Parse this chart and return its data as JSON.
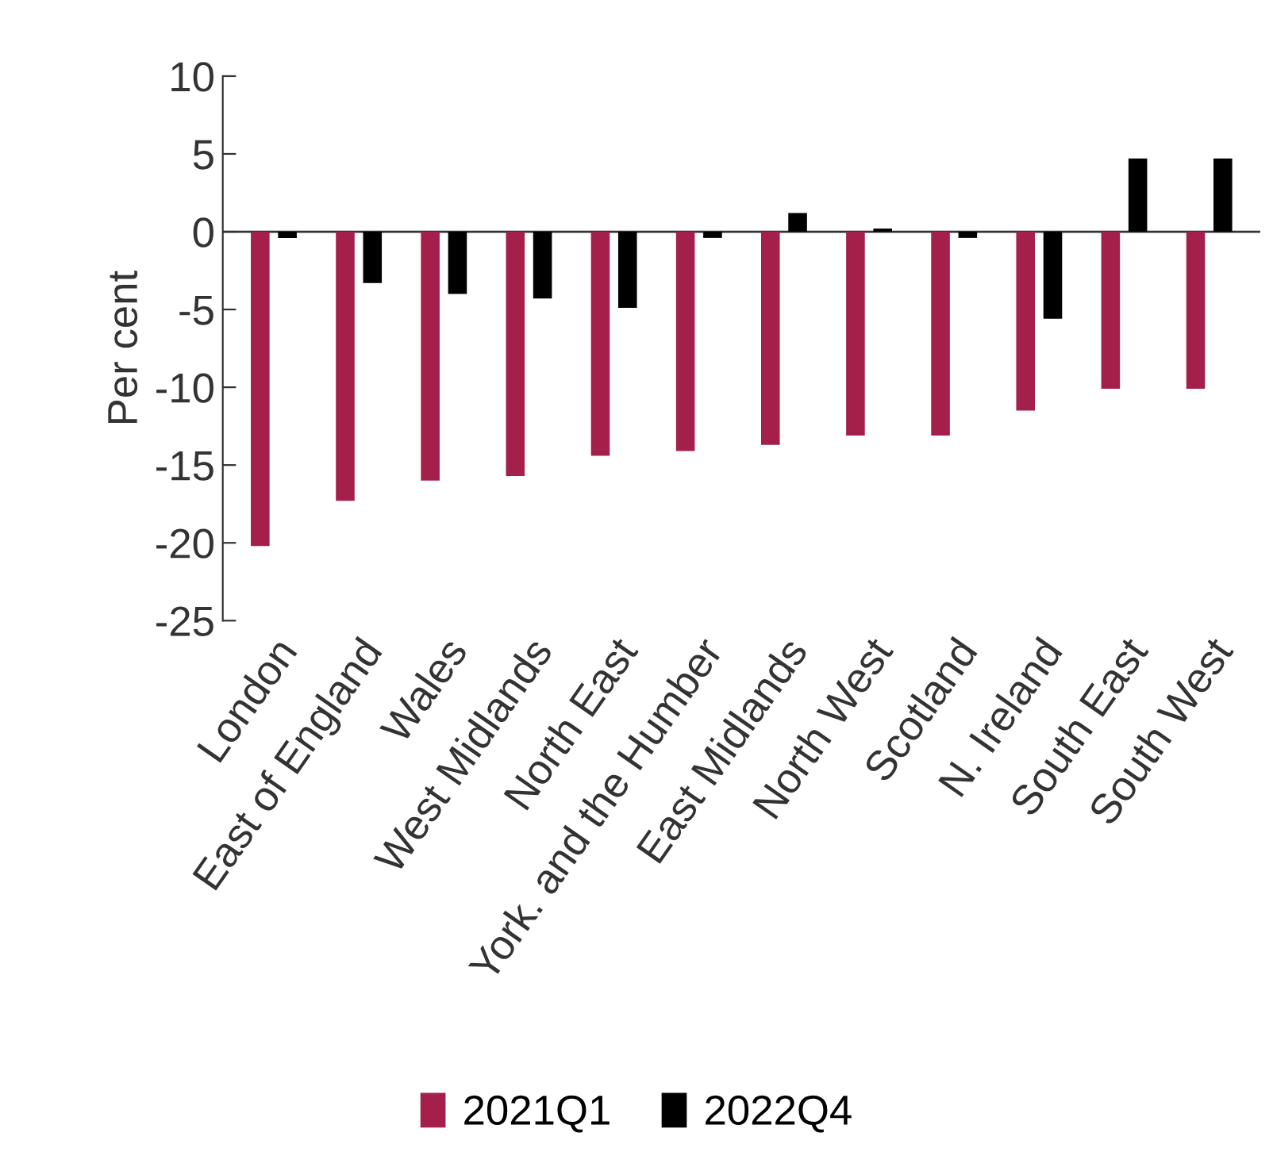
{
  "chart_data": {
    "type": "bar",
    "ylabel": "Per cent",
    "categories": [
      "London",
      "East of England",
      "Wales",
      "West Midlands",
      "North East",
      "York. and the Humber",
      "East Midlands",
      "North West",
      "Scotland",
      "N. Ireland",
      "South East",
      "South West"
    ],
    "series": [
      {
        "name": "2021Q1",
        "color": "#a51f4b",
        "values": [
          -20.2,
          -17.3,
          -16.0,
          -15.7,
          -14.4,
          -14.1,
          -13.7,
          -13.1,
          -13.1,
          -11.5,
          -10.1,
          -10.1
        ]
      },
      {
        "name": "2022Q4",
        "color": "#000000",
        "values": [
          -0.4,
          -3.3,
          -4.0,
          -4.3,
          -4.9,
          -0.4,
          1.2,
          0.2,
          -0.4,
          -5.6,
          4.7,
          4.7
        ]
      }
    ],
    "ylim": [
      -25,
      10
    ],
    "yticks": [
      -25,
      -20,
      -15,
      -10,
      -5,
      0,
      5,
      10
    ],
    "ref_lines": [
      {
        "axis": "y",
        "value": 0,
        "color": "#333333"
      }
    ],
    "legend": "bottom"
  }
}
